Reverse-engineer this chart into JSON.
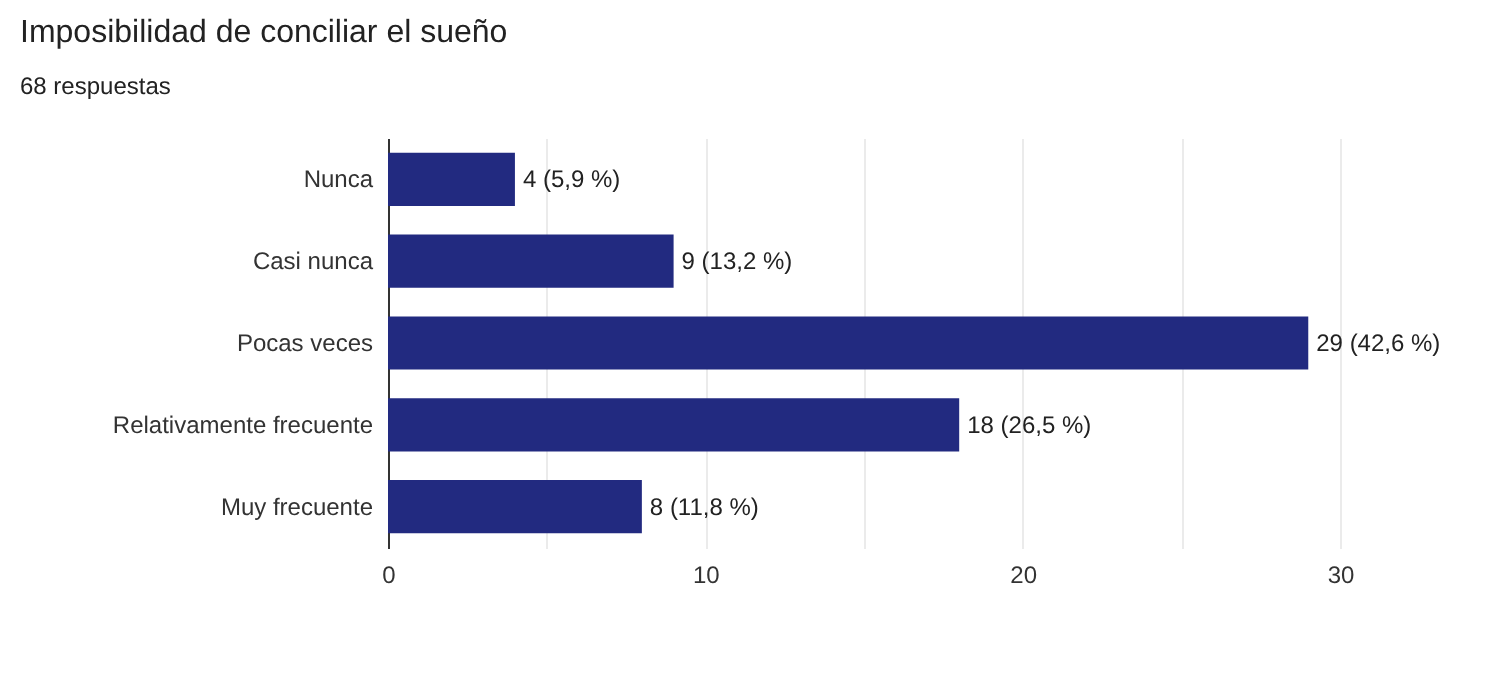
{
  "chart_data": {
    "type": "bar",
    "orientation": "horizontal",
    "title": "Imposibilidad de conciliar el sueño",
    "subtitle": "68 respuestas",
    "categories": [
      "Nunca",
      "Casi nunca",
      "Pocas veces",
      "Relativamente frecuente",
      "Muy frecuente"
    ],
    "values": [
      4,
      9,
      29,
      18,
      8
    ],
    "value_labels": [
      "4 (5,9 %)",
      "9 (13,2 %)",
      "29 (42,6 %)",
      "18 (26,5 %)",
      "8 (11,8 %)"
    ],
    "color": "#222a80",
    "xlim": [
      0,
      30
    ],
    "xticks": [
      0,
      {
        "value": 5,
        "label": null
      },
      10,
      {
        "value": 15,
        "label": null
      },
      20,
      {
        "value": 25,
        "label": null
      },
      30
    ],
    "grid": "x"
  }
}
